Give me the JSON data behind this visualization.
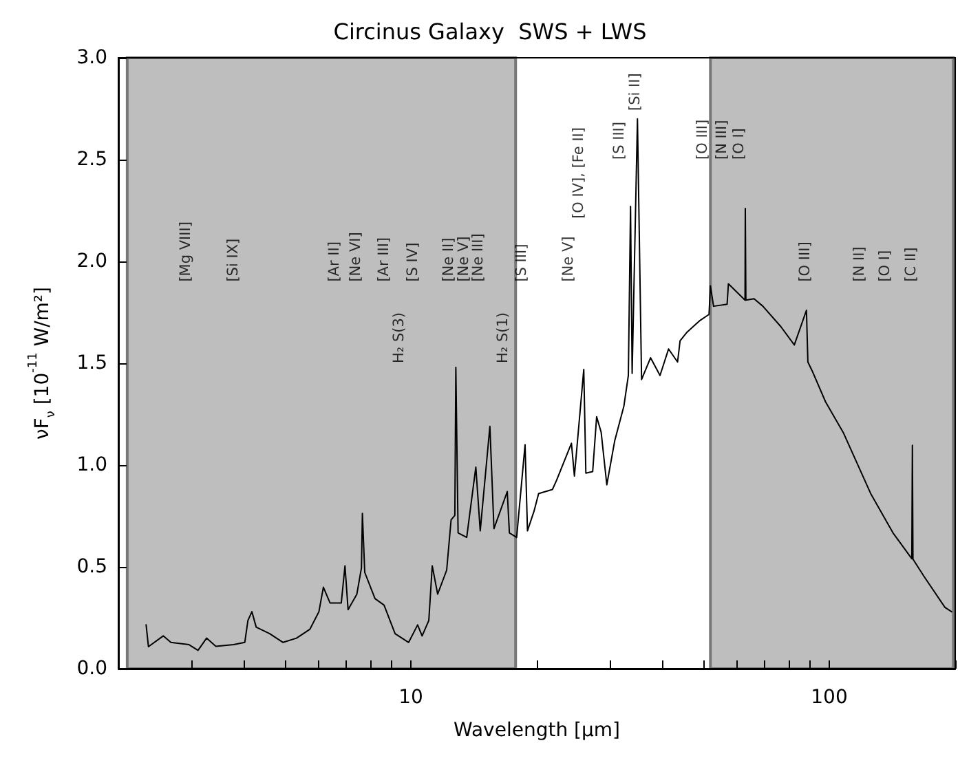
{
  "chart_data": {
    "type": "line",
    "title": "Circinus Galaxy  SWS + LWS",
    "xlabel": "Wavelength [μm]",
    "ylabel": "νF$_{ν}$ [10$^{-11}$ W/m²]",
    "log": "x",
    "xlim": [
      2,
      200
    ],
    "ylim": [
      0,
      3
    ],
    "xticks": [
      {
        "value": 2,
        "label": null
      },
      {
        "value": 3,
        "label": null
      },
      {
        "value": 4,
        "label": null
      },
      {
        "value": 5,
        "label": null
      },
      {
        "value": 6,
        "label": null
      },
      {
        "value": 7,
        "label": null
      },
      {
        "value": 8,
        "label": null
      },
      {
        "value": 9,
        "label": null
      },
      10,
      {
        "value": 20,
        "label": null
      },
      {
        "value": 30,
        "label": null
      },
      {
        "value": 40,
        "label": null
      },
      {
        "value": 50,
        "label": null
      },
      {
        "value": 60,
        "label": null
      },
      {
        "value": 70,
        "label": null
      },
      {
        "value": 80,
        "label": null
      },
      {
        "value": 90,
        "label": null
      },
      100,
      {
        "value": 200,
        "label": null
      }
    ],
    "yticks": [
      {
        "value": 0,
        "label": "0.0"
      },
      {
        "value": 0.5,
        "label": "0.5"
      },
      {
        "value": 1,
        "label": "1.0"
      },
      {
        "value": 1.5,
        "label": "1.5"
      },
      {
        "value": 2,
        "label": "2.0"
      },
      {
        "value": 2.5,
        "label": "2.5"
      },
      {
        "value": 3,
        "label": "3.0"
      }
    ],
    "grid": false,
    "marker": "none",
    "line_style": "solid",
    "series": [
      {
        "color": "#000000",
        "x": [
          2.33,
          2.36,
          2.56,
          2.67,
          2.95,
          3.1,
          3.25,
          3.42,
          3.77,
          4.01,
          4.08,
          4.17,
          4.27,
          4.6,
          4.95,
          5.33,
          5.74,
          6.03,
          6.18,
          6.41,
          6.82,
          6.96,
          7.08,
          7.43,
          7.62,
          7.66,
          7.76,
          8.21,
          8.63,
          9.17,
          9.88,
          10.38,
          10.64,
          11.04,
          11.25,
          11.59,
          12.18,
          12.48,
          12.74,
          12.81,
          12.97,
          13.6,
          14.3,
          14.65,
          15.45,
          15.8,
          17,
          17.2,
          17.9,
          18.75,
          19,
          19.7,
          20.2,
          21.8,
          22.3,
          24.2,
          24.6,
          25.9,
          26.2,
          27.2,
          27.8,
          28.5,
          29.4,
          30.7,
          32.3,
          33.1,
          33.5,
          33.8,
          34.8,
          35.6,
          37.4,
          39.4,
          41.3,
          43.4,
          44,
          45.6,
          49.1,
          51.6,
          52,
          52.9,
          57,
          57.4,
          62.9,
          63,
          63.2,
          66.1,
          69.4,
          76.6,
          82.5,
          88.2,
          88.9,
          91,
          98,
          108,
          125.6,
          142,
          157.5,
          158,
          158.5,
          168.6,
          189,
          196
        ],
        "values": [
          0.215,
          0.108,
          0.161,
          0.129,
          0.118,
          0.09,
          0.15,
          0.11,
          0.118,
          0.129,
          0.237,
          0.28,
          0.204,
          0.172,
          0.129,
          0.15,
          0.194,
          0.28,
          0.4,
          0.323,
          0.323,
          0.505,
          0.29,
          0.366,
          0.495,
          0.763,
          0.473,
          0.344,
          0.312,
          0.172,
          0.129,
          0.215,
          0.161,
          0.237,
          0.505,
          0.366,
          0.484,
          0.731,
          0.753,
          1.48,
          0.667,
          0.645,
          0.99,
          0.677,
          1.19,
          0.688,
          0.87,
          0.667,
          0.645,
          1.1,
          0.677,
          0.774,
          0.86,
          0.88,
          0.925,
          1.107,
          0.946,
          1.47,
          0.96,
          0.968,
          1.237,
          1.161,
          0.903,
          1.118,
          1.29,
          1.44,
          2.27,
          1.45,
          2.7,
          1.42,
          1.527,
          1.44,
          1.57,
          1.506,
          1.61,
          1.65,
          1.71,
          1.74,
          1.88,
          1.78,
          1.79,
          1.89,
          1.81,
          2.26,
          1.81,
          1.817,
          1.78,
          1.68,
          1.59,
          1.76,
          1.506,
          1.463,
          1.31,
          1.16,
          0.86,
          0.667,
          0.54,
          1.097,
          0.538,
          0.452,
          0.301,
          0.28
        ]
      }
    ],
    "bands": [
      {
        "axis": "x",
        "from": 2.1,
        "to": 17.8,
        "color": "#bebebe"
      },
      {
        "axis": "x",
        "from": 52,
        "to": 198,
        "color": "#bebebe"
      }
    ],
    "annotations": [
      "[Mg VIII]",
      "[Si IX]",
      "[Ar II]",
      "[Ne VI]",
      "[Ar III]",
      "[S IV]",
      "H₂ S(3)",
      "[Ne II]",
      "[Ne V]",
      "[Ne III]",
      "H₂ S(1)",
      "[S III]",
      "[Ne V]",
      "[O IV], [Fe II]",
      "[S III]",
      "[Si II]",
      "[O III]",
      "[N III]",
      "[O I]",
      "[O III]",
      "[N II]",
      "[O I]",
      "[C II]"
    ]
  }
}
